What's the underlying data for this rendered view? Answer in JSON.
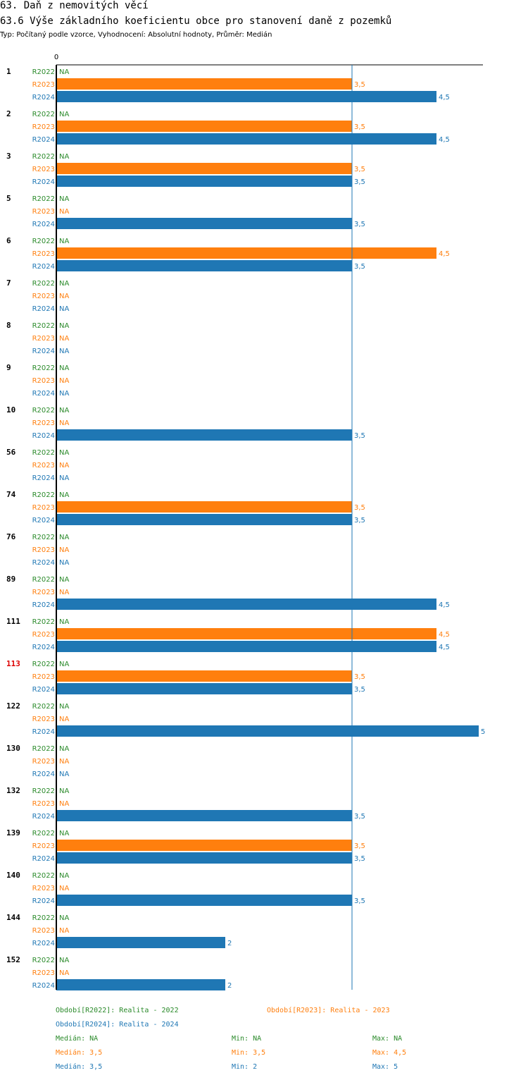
{
  "header": {
    "title": "63. Daň z nemovitých věcí",
    "subtitle": "63.6 Výše základního koeficientu obce pro stanovení daně z pozemků",
    "meta": "Typ: Počítaný podle vzorce, Vyhodnocení: Absolutní hodnoty, Průměr: Medián"
  },
  "chart_data": {
    "type": "bar",
    "orientation": "horizontal",
    "axis_zero_label": "0",
    "xlim": [
      0,
      5
    ],
    "reference_line": 3.5,
    "missing_label": "NA",
    "series": [
      {
        "key": "R2022",
        "color": "#2a8a2a",
        "legend": "Období[R2022]: Realita - 2022"
      },
      {
        "key": "R2023",
        "color": "#ff7f0e",
        "legend": "Období[R2023]: Realita - 2023"
      },
      {
        "key": "R2024",
        "color": "#1f77b4",
        "legend": "Období[R2024]: Realita - 2024"
      }
    ],
    "groups": [
      {
        "label": "1",
        "highlight": false,
        "values": [
          null,
          3.5,
          4.5
        ]
      },
      {
        "label": "2",
        "highlight": false,
        "values": [
          null,
          3.5,
          4.5
        ]
      },
      {
        "label": "3",
        "highlight": false,
        "values": [
          null,
          3.5,
          3.5
        ]
      },
      {
        "label": "5",
        "highlight": false,
        "values": [
          null,
          null,
          3.5
        ]
      },
      {
        "label": "6",
        "highlight": false,
        "values": [
          null,
          4.5,
          3.5
        ]
      },
      {
        "label": "7",
        "highlight": false,
        "values": [
          null,
          null,
          null
        ]
      },
      {
        "label": "8",
        "highlight": false,
        "values": [
          null,
          null,
          null
        ]
      },
      {
        "label": "9",
        "highlight": false,
        "values": [
          null,
          null,
          null
        ]
      },
      {
        "label": "10",
        "highlight": false,
        "values": [
          null,
          null,
          3.5
        ]
      },
      {
        "label": "56",
        "highlight": false,
        "values": [
          null,
          null,
          null
        ]
      },
      {
        "label": "74",
        "highlight": false,
        "values": [
          null,
          3.5,
          3.5
        ]
      },
      {
        "label": "76",
        "highlight": false,
        "values": [
          null,
          null,
          null
        ]
      },
      {
        "label": "89",
        "highlight": false,
        "values": [
          null,
          null,
          4.5
        ]
      },
      {
        "label": "111",
        "highlight": false,
        "values": [
          null,
          4.5,
          4.5
        ]
      },
      {
        "label": "113",
        "highlight": true,
        "values": [
          null,
          3.5,
          3.5
        ]
      },
      {
        "label": "122",
        "highlight": false,
        "values": [
          null,
          null,
          5
        ]
      },
      {
        "label": "130",
        "highlight": false,
        "values": [
          null,
          null,
          null
        ]
      },
      {
        "label": "132",
        "highlight": false,
        "values": [
          null,
          null,
          3.5
        ]
      },
      {
        "label": "139",
        "highlight": false,
        "values": [
          null,
          3.5,
          3.5
        ]
      },
      {
        "label": "140",
        "highlight": false,
        "values": [
          null,
          null,
          3.5
        ]
      },
      {
        "label": "144",
        "highlight": false,
        "values": [
          null,
          null,
          2
        ]
      },
      {
        "label": "152",
        "highlight": false,
        "values": [
          null,
          null,
          2
        ]
      }
    ]
  },
  "legend": {
    "r2022": "Období[R2022]: Realita - 2022",
    "r2023": "Období[R2023]: Realita - 2023",
    "r2024": "Období[R2024]: Realita - 2024"
  },
  "stats": {
    "r2022": {
      "median": "Medián: NA",
      "min": "Min: NA",
      "max": "Max: NA"
    },
    "r2023": {
      "median": "Medián: 3,5",
      "min": "Min: 3,5",
      "max": "Max: 4,5"
    },
    "r2024": {
      "median": "Medián: 3,5",
      "min": "Min: 2",
      "max": "Max: 5"
    }
  },
  "colors": {
    "r2022": "#2a8a2a",
    "r2023": "#ff7f0e",
    "r2024": "#1f77b4",
    "highlight": "#dd0000",
    "axis": "#000000"
  }
}
